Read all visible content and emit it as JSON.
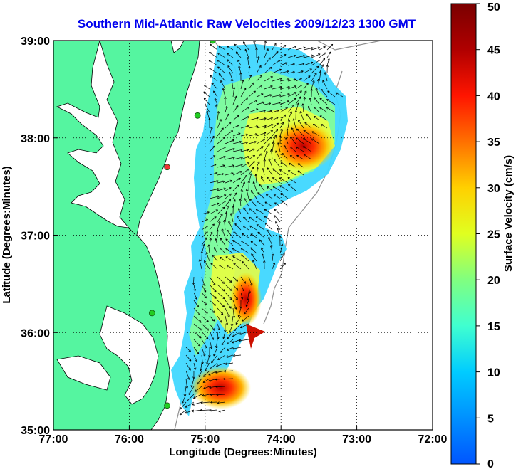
{
  "title": "Southern Mid-Atlantic Raw Velocities 2009/12/23 1300 GMT",
  "axes": {
    "xlabel": "Longitude (Degrees:Minutes)",
    "ylabel": "Latitude (Degrees:Minutes)",
    "x_ticks": [
      "77:00",
      "76:00",
      "75:00",
      "74:00",
      "73:00",
      "72:00"
    ],
    "y_ticks": [
      "39:00",
      "38:00",
      "37:00",
      "36:00",
      "35:00"
    ]
  },
  "colorbar": {
    "label": "Surface Velocity (cm/s)",
    "ticks": [
      "50",
      "45",
      "40",
      "35",
      "30",
      "25",
      "20",
      "15",
      "10",
      "5",
      "0"
    ],
    "min": 0,
    "max": 50
  },
  "colors": {
    "title": "#0000ee",
    "land": "#55f5a0",
    "water": "#ffffff",
    "grid": "#000000",
    "station": "#22cc22",
    "station_alt": "#ee3333"
  },
  "map_data": {
    "lon_range": [
      -77,
      -72
    ],
    "lat_range": [
      35,
      39
    ],
    "stations": [
      {
        "lon": -74.9,
        "lat": 39.0,
        "kind": "site"
      },
      {
        "lon": -75.1,
        "lat": 38.23,
        "kind": "site"
      },
      {
        "lon": -75.5,
        "lat": 37.7,
        "kind": "alt"
      },
      {
        "lon": -75.7,
        "lat": 36.2,
        "kind": "site"
      },
      {
        "lon": -75.5,
        "lat": 35.25,
        "kind": "site"
      }
    ],
    "velocity_hotspots_cm_s": [
      {
        "lon": -73.6,
        "lat": 38.1,
        "speed": 45
      },
      {
        "lon": -74.5,
        "lat": 36.5,
        "speed": 50
      },
      {
        "lon": -74.8,
        "lat": 35.35,
        "speed": 48
      }
    ]
  }
}
